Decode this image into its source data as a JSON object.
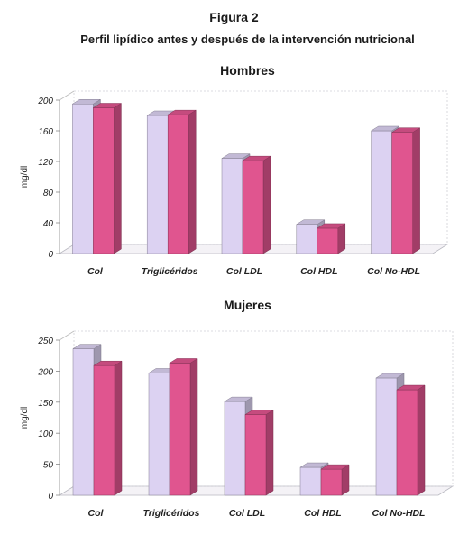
{
  "figure": {
    "title": "Figura 2",
    "subtitle": "Perfil lipídico antes y después de la intervención nutricional"
  },
  "colors": {
    "before": "#dcd2f2",
    "after": "#e0558f",
    "floor": "#f4f2f6"
  },
  "chart_data": [
    {
      "type": "bar",
      "title": "Hombres",
      "ylabel": "mg/dl",
      "xlabel": "",
      "ylim": [
        0,
        200
      ],
      "yticks": [
        "0",
        "40",
        "80",
        "120",
        "160",
        "200"
      ],
      "categories": [
        "Col",
        "Triglicéridos",
        "Col LDL",
        "Col HDL",
        "Col No-HDL"
      ],
      "series": [
        {
          "values": [
            195,
            180,
            124,
            38,
            160
          ]
        },
        {
          "values": [
            190,
            181,
            121,
            33,
            158
          ]
        }
      ],
      "grid": false,
      "legend": "none"
    },
    {
      "type": "bar",
      "title": "Mujeres",
      "ylabel": "mg/dl",
      "xlabel": "",
      "ylim": [
        0,
        250
      ],
      "yticks": [
        "0",
        "50",
        "100",
        "150",
        "200",
        "250"
      ],
      "categories": [
        "Col",
        "Triglicéridos",
        "Col LDL",
        "Col HDL",
        "Col No-HDL"
      ],
      "series": [
        {
          "values": [
            236,
            197,
            151,
            45,
            189
          ]
        },
        {
          "values": [
            209,
            213,
            130,
            42,
            170
          ]
        }
      ],
      "grid": false,
      "legend": "none"
    }
  ]
}
